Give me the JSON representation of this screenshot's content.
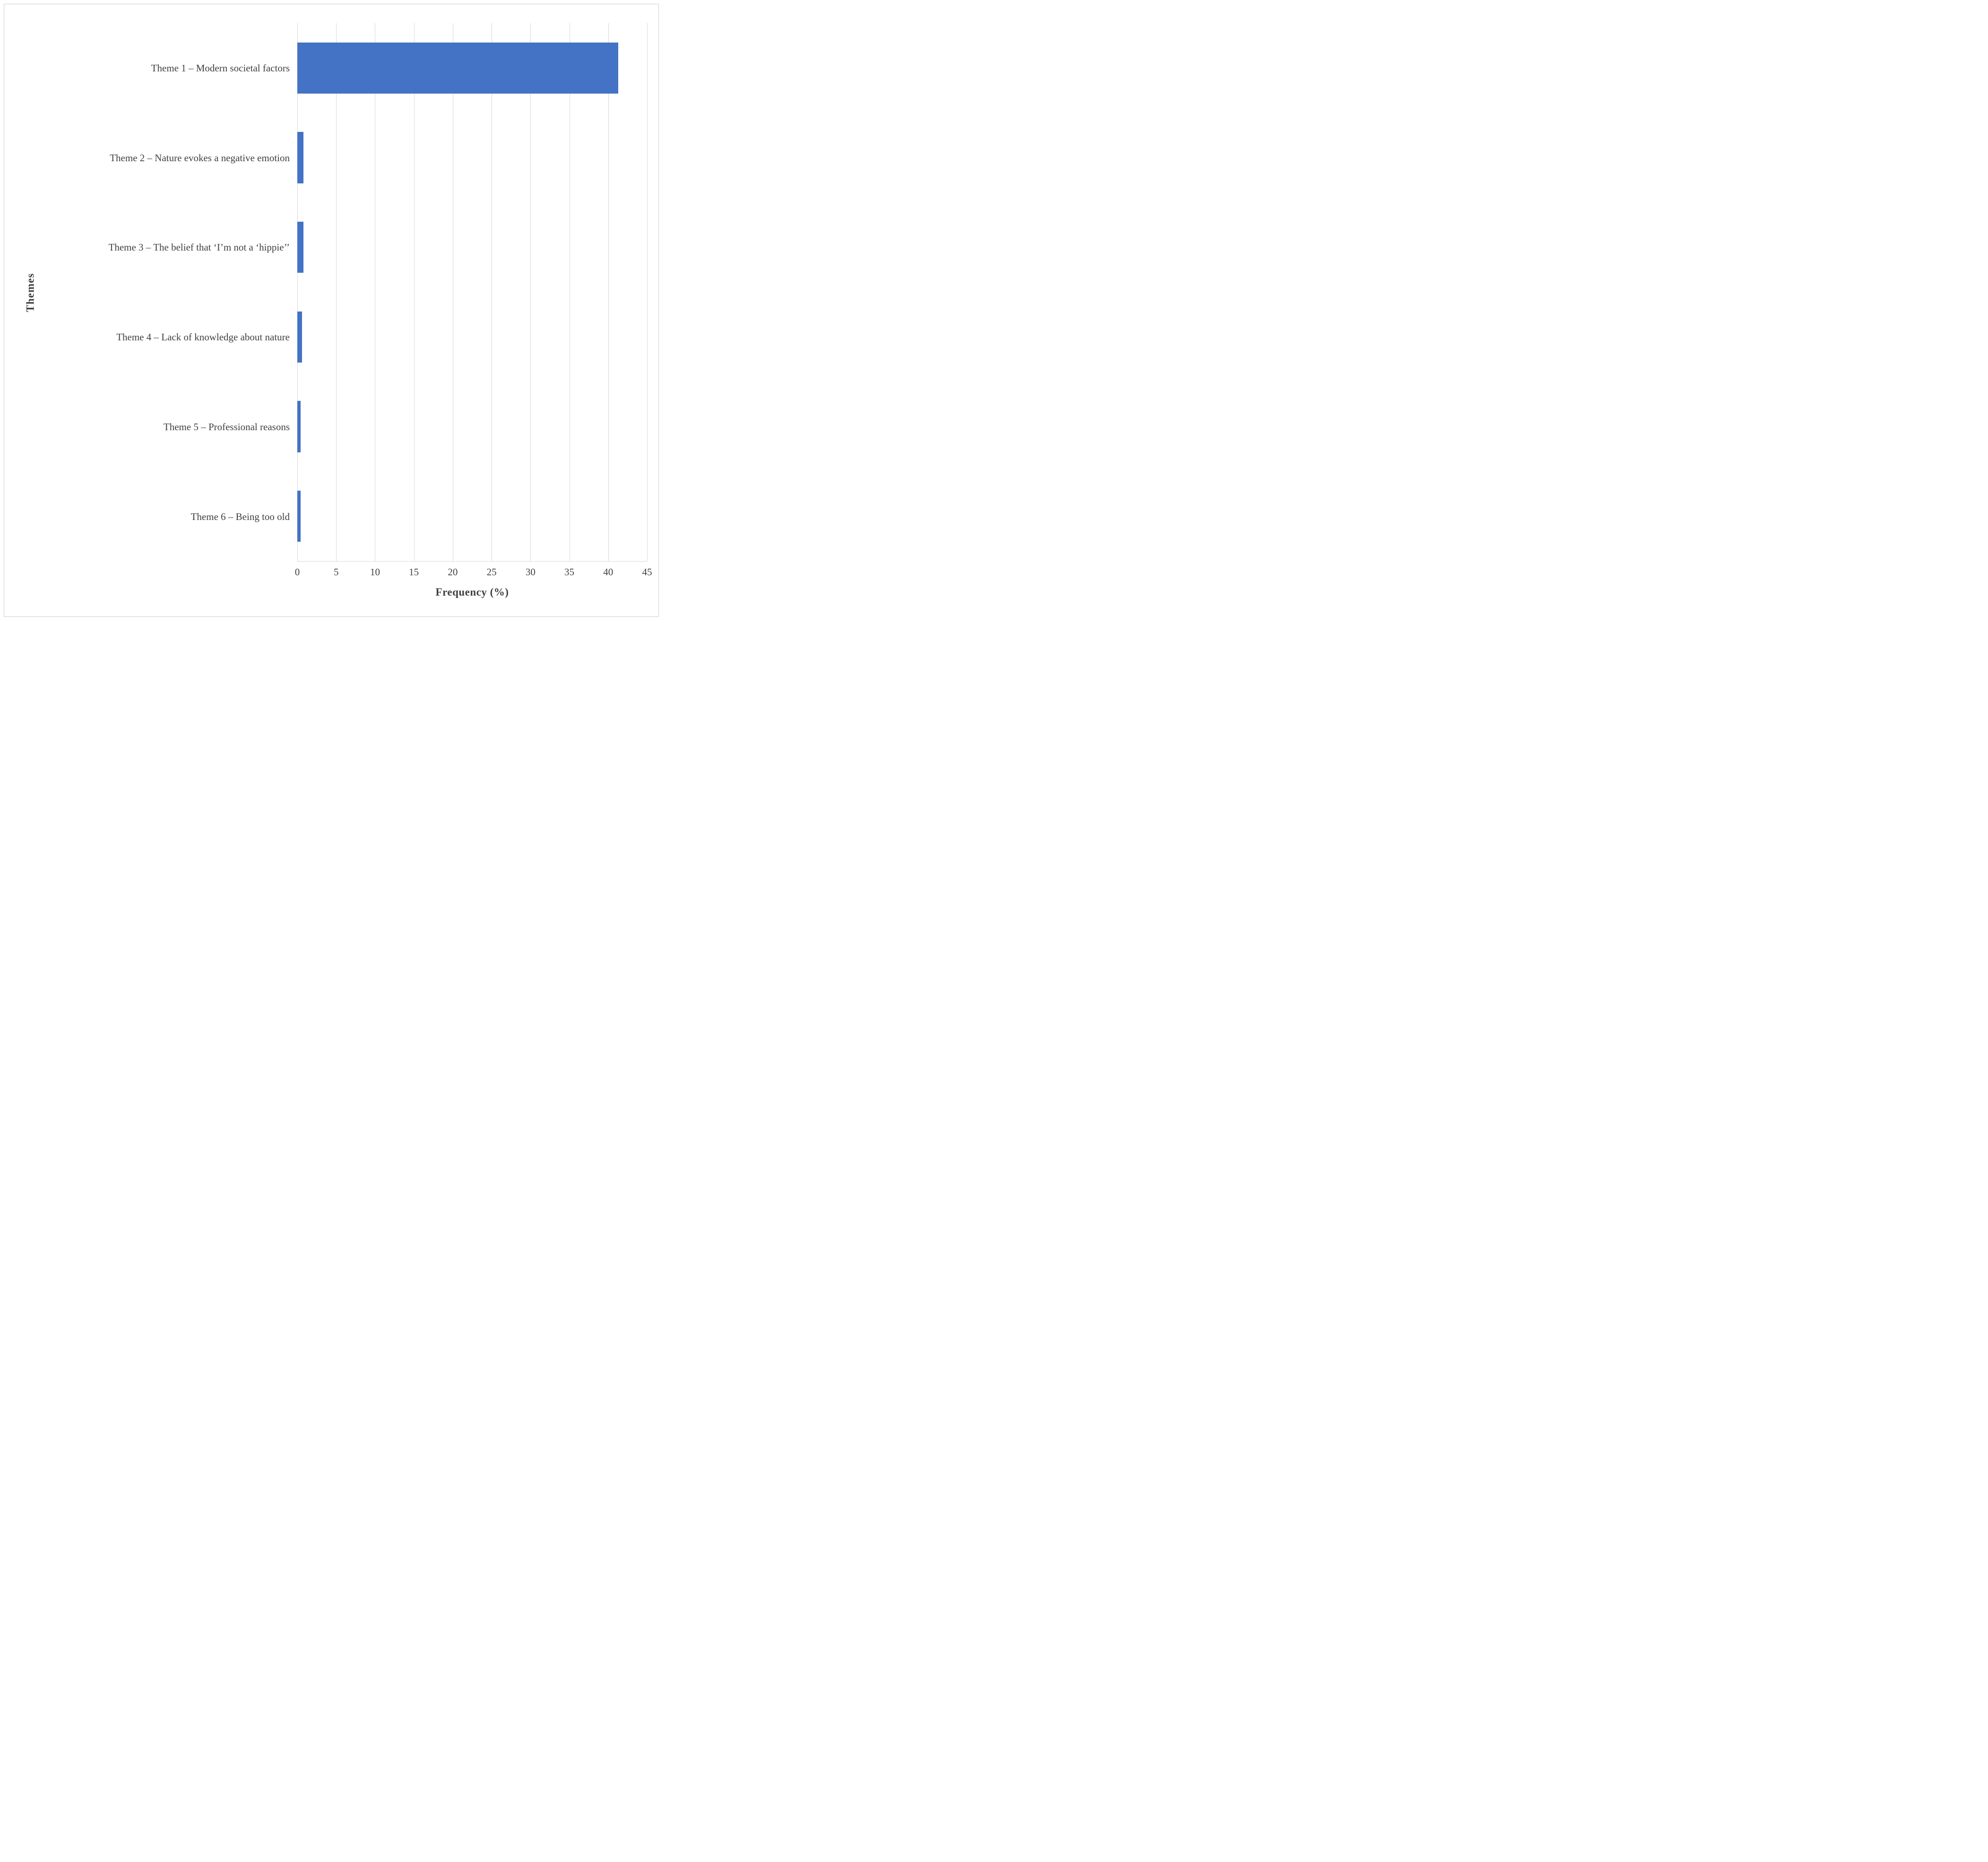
{
  "chart_data": {
    "type": "bar",
    "orientation": "horizontal",
    "title": "",
    "xlabel": "Frequency (%)",
    "ylabel": "Themes",
    "categories": [
      "Theme 1 – Modern societal factors",
      "Theme 2 – Nature evokes a negative emotion",
      "Theme 3 – The belief that ‘I’m not a ‘hippie’’",
      "Theme 4 – Lack of knowledge about nature",
      "Theme 5 – Professional reasons",
      "Theme 6 – Being too old"
    ],
    "values": [
      41.3,
      0.8,
      0.8,
      0.6,
      0.4,
      0.4
    ],
    "xlim": [
      0,
      45
    ],
    "xticks": [
      0,
      5,
      10,
      15,
      20,
      25,
      30,
      35,
      40,
      45
    ],
    "grid": true,
    "legend": false,
    "bar_color": "#4472C4",
    "gridline_color": "#D9D9D9",
    "text_color": "#404040"
  }
}
